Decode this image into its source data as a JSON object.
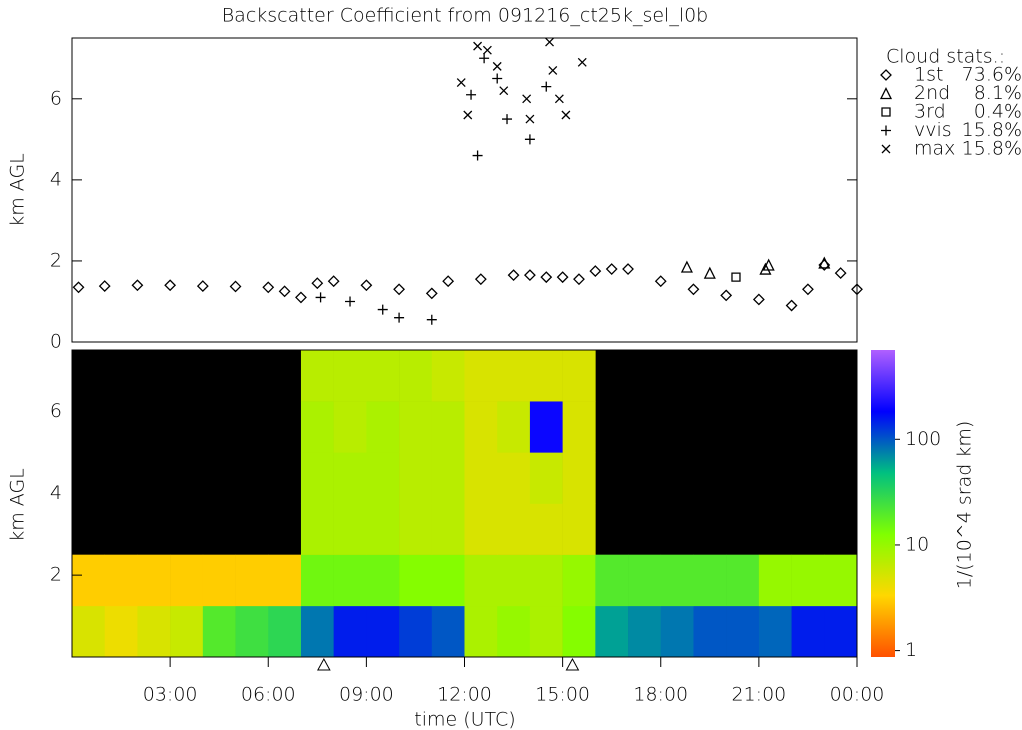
{
  "chart_data": [
    {
      "type": "scatter",
      "title": "Backscatter Coefficient from 091216_ct25k_sel_l0b",
      "y_label": "km AGL",
      "legend_title": "Cloud stats.:",
      "xlim": [
        0,
        24
      ],
      "ylim": [
        0,
        7.5
      ],
      "yticks": [
        0,
        2,
        4,
        6
      ],
      "series": [
        {
          "name": "1st",
          "share": 73.6,
          "share_label": "73.6%",
          "marker": "diamond",
          "color": "#000000",
          "x": [
            0.2,
            1,
            2,
            3,
            4,
            5,
            6,
            6.5,
            7,
            7.5,
            8,
            9,
            10,
            11,
            11.5,
            12.5,
            13.5,
            14,
            14.5,
            15,
            15.5,
            16,
            16.5,
            17,
            18,
            19,
            20,
            21,
            22,
            22.5,
            23,
            23.5,
            24
          ],
          "values": [
            1.35,
            1.38,
            1.4,
            1.4,
            1.38,
            1.37,
            1.35,
            1.25,
            1.1,
            1.45,
            1.5,
            1.4,
            1.3,
            1.2,
            1.5,
            1.55,
            1.65,
            1.65,
            1.6,
            1.6,
            1.55,
            1.75,
            1.8,
            1.8,
            1.5,
            1.3,
            1.15,
            1.05,
            0.9,
            1.3,
            1.9,
            1.7,
            1.3
          ]
        },
        {
          "name": "2nd",
          "share": 8.1,
          "share_label": "8.1%",
          "marker": "triangle",
          "color": "#000000",
          "x": [
            18.8,
            19.5,
            21.2,
            21.3,
            23.0
          ],
          "values": [
            1.85,
            1.7,
            1.8,
            1.9,
            1.95
          ]
        },
        {
          "name": "3rd",
          "share": 0.4,
          "share_label": "0.4%",
          "marker": "square",
          "color": "#000000",
          "x": [
            20.3
          ],
          "values": [
            1.6
          ]
        },
        {
          "name": "vvis",
          "share": 15.8,
          "share_label": "15.8%",
          "marker": "plus",
          "color": "#000000",
          "x": [
            7.6,
            8.5,
            9.5,
            10,
            11,
            12.2,
            12.4,
            12.6,
            13,
            13.3,
            14,
            14.5
          ],
          "values": [
            1.1,
            1.0,
            0.8,
            0.6,
            0.55,
            6.1,
            4.6,
            7.0,
            6.5,
            5.5,
            5.0,
            6.3
          ]
        },
        {
          "name": "max",
          "share": 15.8,
          "share_label": "15.8%",
          "marker": "cross",
          "color": "#000000",
          "x": [
            11.9,
            12.1,
            12.4,
            12.7,
            13,
            13.2,
            13.9,
            14,
            14.6,
            14.7,
            14.9,
            15.1,
            15.6
          ],
          "values": [
            6.4,
            5.6,
            7.3,
            7.2,
            6.8,
            6.2,
            6.0,
            5.5,
            7.4,
            6.7,
            6.0,
            5.6,
            6.9
          ]
        }
      ]
    },
    {
      "type": "heatmap",
      "y_label": "km AGL",
      "x_label": "time (UTC)",
      "xlim": [
        0,
        24
      ],
      "ylim": [
        0,
        7.5
      ],
      "yticks": [
        2,
        4,
        6
      ],
      "xticks": [
        {
          "value": 3,
          "label": "03:00"
        },
        {
          "value": 6,
          "label": "06:00"
        },
        {
          "value": 9,
          "label": "09:00"
        },
        {
          "value": 12,
          "label": "12:00"
        },
        {
          "value": 15,
          "label": "15:00"
        },
        {
          "value": 18,
          "label": "18:00"
        },
        {
          "value": 21,
          "label": "21:00"
        },
        {
          "value": 24,
          "label": "00:00"
        }
      ],
      "flags": [
        7.7,
        15.3
      ],
      "time_bins": [
        0,
        1,
        2,
        3,
        4,
        5,
        6,
        7,
        8,
        9,
        10,
        11,
        12,
        13,
        14,
        15,
        16,
        17,
        18,
        19,
        20,
        21,
        22,
        23,
        24
      ],
      "height_bins": [
        0,
        1.25,
        2.5,
        3.75,
        5,
        6.25,
        7.5
      ],
      "values": [
        [
          5,
          4,
          5,
          6,
          20,
          25,
          30,
          80,
          150,
          150,
          120,
          100,
          8,
          10,
          8,
          12,
          60,
          70,
          80,
          100,
          100,
          90,
          150,
          150
        ],
        [
          3,
          3,
          3,
          3,
          3,
          3,
          3,
          15,
          15,
          15,
          12,
          12,
          8,
          8,
          8,
          10,
          20,
          20,
          20,
          20,
          20,
          10,
          10,
          10
        ],
        [
          null,
          null,
          null,
          null,
          null,
          null,
          null,
          8,
          8,
          8,
          7,
          7,
          5,
          5,
          5,
          5,
          null,
          null,
          null,
          null,
          null,
          null,
          null,
          null
        ],
        [
          null,
          null,
          null,
          null,
          null,
          null,
          null,
          8,
          8,
          8,
          7,
          7,
          5,
          5,
          6,
          5,
          null,
          null,
          null,
          null,
          null,
          null,
          null,
          null
        ],
        [
          null,
          null,
          null,
          null,
          null,
          null,
          null,
          8,
          7,
          8,
          7,
          7,
          5,
          6,
          200,
          5,
          null,
          null,
          null,
          null,
          null,
          null,
          null,
          null
        ],
        [
          null,
          null,
          null,
          null,
          null,
          null,
          null,
          7,
          7,
          7,
          7,
          6,
          5,
          5,
          5,
          5,
          null,
          null,
          null,
          null,
          null,
          null,
          null,
          null
        ]
      ],
      "colorbar_label": "1/(10^4 srad km)",
      "clim": [
        0.87,
        700
      ],
      "cticks": [
        1,
        10,
        100
      ],
      "log_color": true,
      "colormap": [
        "#ff5000",
        "#ffd700",
        "#80ff00",
        "#00c080",
        "#0000ff",
        "#b060ff"
      ]
    }
  ]
}
